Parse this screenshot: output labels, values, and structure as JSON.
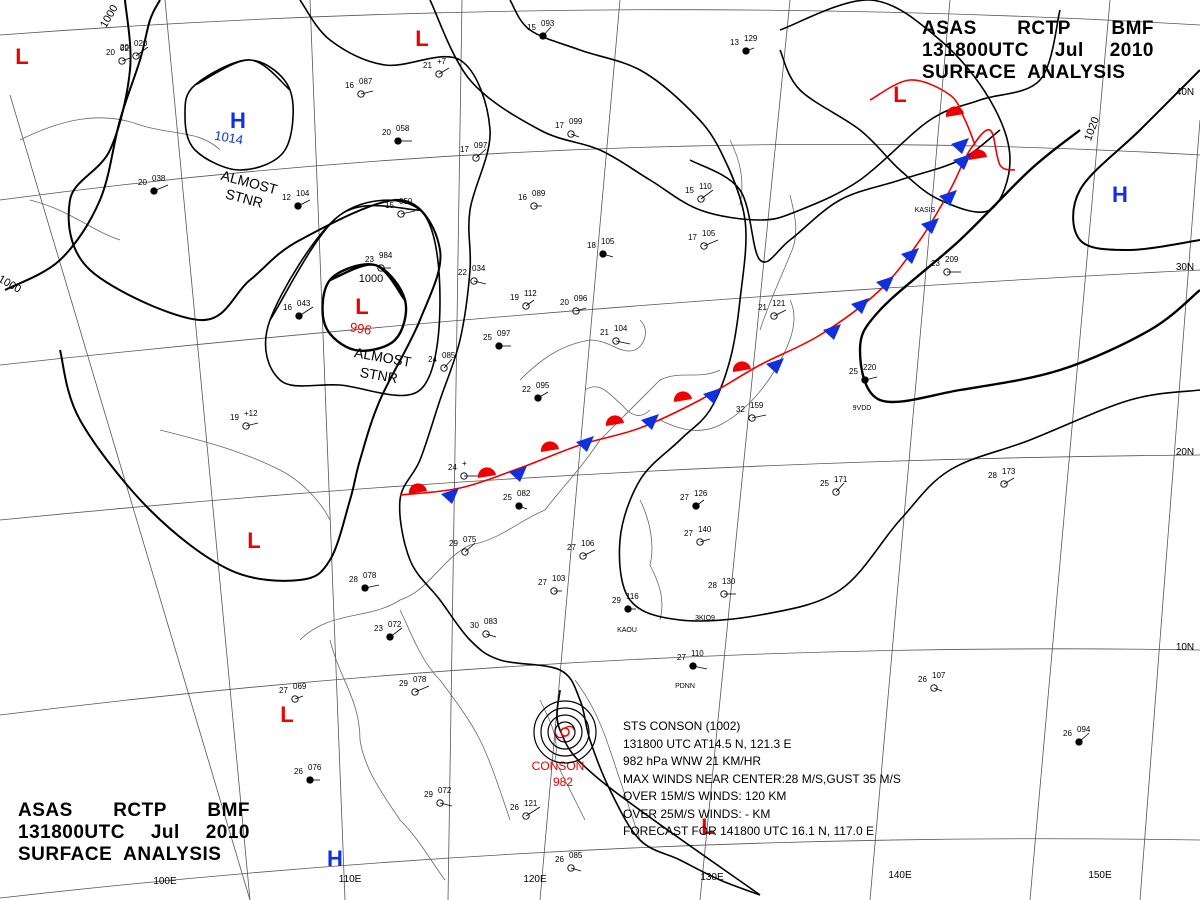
{
  "header": {
    "line1": [
      "ASAS",
      "RCTP",
      "BMF"
    ],
    "line2": [
      "131800UTC",
      "Jul",
      "2010"
    ],
    "line3": "SURFACE  ANALYSIS"
  },
  "pressure_centers": [
    {
      "type": "H",
      "value": "1014",
      "note": "ALMOST STNR"
    },
    {
      "type": "L",
      "value": "996",
      "note": "ALMOST STNR"
    },
    {
      "type": "H",
      "value": ""
    },
    {
      "type": "H",
      "value": ""
    },
    {
      "type": "L",
      "value": ""
    },
    {
      "type": "L",
      "value": ""
    },
    {
      "type": "L",
      "value": ""
    },
    {
      "type": "L",
      "value": ""
    },
    {
      "type": "L",
      "value": ""
    },
    {
      "type": "L",
      "value": ""
    }
  ],
  "isobar_labels": [
    "1000",
    "1000",
    "1020",
    "1000"
  ],
  "latitude_labels": [
    "10N",
    "20N",
    "30N",
    "40N"
  ],
  "longitude_labels": [
    "100E",
    "110E",
    "120E",
    "130E",
    "140E",
    "150E"
  ],
  "storm": {
    "label": "CONSON",
    "pressure": "982",
    "info": [
      "STS  CONSON  (1002)",
      "131800 UTC  AT14.5 N, 121.3 E",
      "982 hPa  WNW  21 KM/HR",
      "MAX WINDS NEAR CENTER:28 M/S,GUST 35 M/S",
      "OVER 15M/S WINDS: 120 KM",
      "OVER 25M/S WINDS: - KM",
      "FORECAST FOR 141800 UTC 16.1 N, 117.0 E"
    ]
  },
  "station_codes": [
    "9VDD",
    "KAOU",
    "PDNN",
    "3KIO9",
    "KASIS"
  ],
  "stations": [
    {
      "t": "15",
      "p": "093"
    },
    {
      "t": "21",
      "p": "+7"
    },
    {
      "t": "16",
      "p": "087"
    },
    {
      "t": "20",
      "p": "058"
    },
    {
      "t": "17",
      "p": "099"
    },
    {
      "t": "17",
      "p": "097"
    },
    {
      "t": "12",
      "p": "104"
    },
    {
      "t": "15",
      "p": "050"
    },
    {
      "t": "16",
      "p": "089"
    },
    {
      "t": "18",
      "p": "105"
    },
    {
      "t": "15",
      "p": "110"
    },
    {
      "t": "17",
      "p": "105"
    },
    {
      "t": "13",
      "p": "129"
    },
    {
      "t": "23",
      "p": "984"
    },
    {
      "t": "22",
      "p": "034"
    },
    {
      "t": "16",
      "p": "043"
    },
    {
      "t": "19",
      "p": "112"
    },
    {
      "t": "20",
      "p": "096"
    },
    {
      "t": "25",
      "p": "097"
    },
    {
      "t": "21",
      "p": "104"
    },
    {
      "t": "24",
      "p": "085"
    },
    {
      "t": "22",
      "p": "095"
    },
    {
      "t": "19",
      "p": "+12"
    },
    {
      "t": "24",
      "p": "+"
    },
    {
      "t": "25",
      "p": "082"
    },
    {
      "t": "29",
      "p": "075"
    },
    {
      "t": "27",
      "p": "106"
    },
    {
      "t": "28",
      "p": "078"
    },
    {
      "t": "27",
      "p": "103"
    },
    {
      "t": "30",
      "p": "083"
    },
    {
      "t": "23",
      "p": "072"
    },
    {
      "t": "29",
      "p": "078"
    },
    {
      "t": "27",
      "p": "069"
    },
    {
      "t": "26",
      "p": "076"
    },
    {
      "t": "29",
      "p": "072"
    },
    {
      "t": "26",
      "p": "121"
    },
    {
      "t": "27",
      "p": "126"
    },
    {
      "t": "27",
      "p": "140"
    },
    {
      "t": "28",
      "p": "130"
    },
    {
      "t": "27",
      "p": "110"
    },
    {
      "t": "25",
      "p": "171"
    },
    {
      "t": "28",
      "p": "173"
    },
    {
      "t": "25",
      "p": "220"
    },
    {
      "t": "23",
      "p": "209"
    },
    {
      "t": "26",
      "p": "107"
    },
    {
      "t": "26",
      "p": "094"
    },
    {
      "t": "21",
      "p": "121"
    },
    {
      "t": "32",
      "p": "159"
    },
    {
      "t": "29",
      "p": "116"
    },
    {
      "t": "26",
      "p": "085"
    },
    {
      "t": "20",
      "p": "020"
    },
    {
      "t": "20",
      "p": "038"
    },
    {
      "t": "20",
      "p": "02"
    }
  ]
}
